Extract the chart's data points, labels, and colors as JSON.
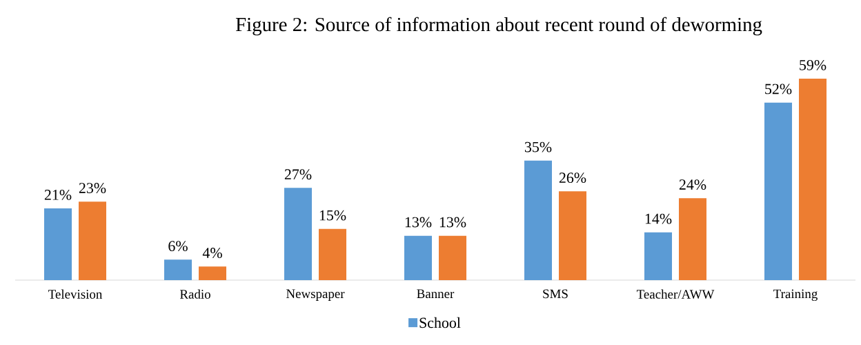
{
  "chart_data": {
    "type": "bar",
    "title": "Figure 2: Source of information about recent round of deworming",
    "categories": [
      "Television",
      "Radio",
      "Newspaper",
      "Banner",
      "SMS",
      "Teacher/AWW",
      "Training"
    ],
    "series": [
      {
        "name": "School",
        "color": "#5b9bd5",
        "values": [
          21,
          6,
          27,
          13,
          35,
          14,
          52
        ],
        "value_labels": [
          "21%",
          "6%",
          "27%",
          "13%",
          "35%",
          "14%",
          "52%"
        ]
      },
      {
        "color": "#ed7d31",
        "values": [
          23,
          4,
          15,
          13,
          26,
          24,
          59
        ],
        "value_labels": [
          "23%",
          "4%",
          "15%",
          "13%",
          "26%",
          "24%",
          "59%"
        ]
      }
    ],
    "legend": "bottom"
  }
}
